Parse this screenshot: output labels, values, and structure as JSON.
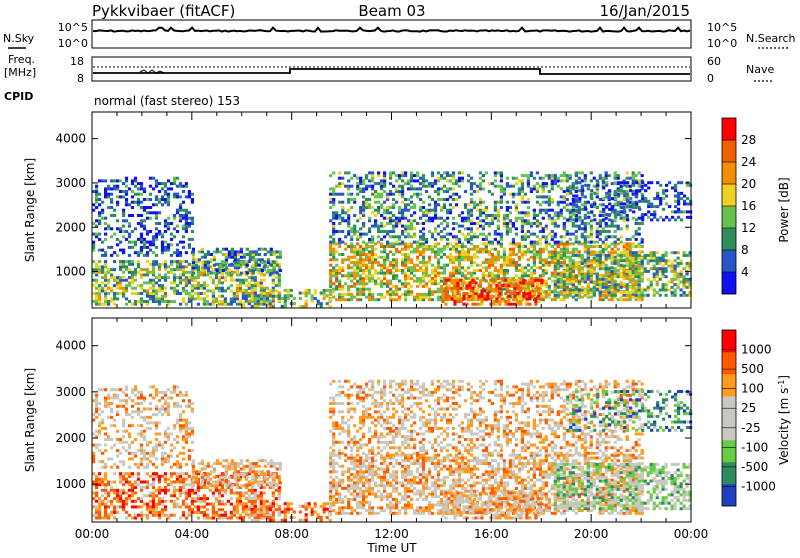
{
  "header": {
    "station": "Pykkvibaer (fitACF)",
    "beam": "Beam 03",
    "date": "16/Jan/2015"
  },
  "top_panels": {
    "nsky_label": "N.Sky",
    "nsky_ticks": [
      "10^5",
      "10^0"
    ],
    "nsearch_label": "N.Search",
    "nsearch_ticks": [
      "10^5",
      "10^0"
    ],
    "freq_label_1": "Freq.",
    "freq_label_2": "[MHz]",
    "freq_ticks": [
      "18",
      "8"
    ],
    "nave_label": "Nave",
    "nave_ticks": [
      "60",
      "0"
    ],
    "cpid_label": "CPID",
    "cpid_text": "normal (fast stereo) 153"
  },
  "colors": {
    "power_scale": [
      "#1010f0",
      "#2a55c8",
      "#2f8f5a",
      "#67c050",
      "#f0d020",
      "#f09000",
      "#f06000",
      "#ff0000"
    ],
    "velocity_scale": [
      "#ff0000",
      "#ff5a00",
      "#ff9a20",
      "#c8c8c0",
      "#c8c8c0",
      "#66cc44",
      "#2e8a60",
      "#2040c0"
    ]
  },
  "chart_data": [
    {
      "type": "heatmap",
      "title": "",
      "xlabel": "Time UT",
      "ylabel": "Slant Range [km]",
      "x_ticks": [
        "00:00",
        "04:00",
        "08:00",
        "12:00",
        "16:00",
        "20:00",
        "00:00"
      ],
      "y_ticks": [
        "1000",
        "2000",
        "3000",
        "4000"
      ],
      "ylim": [
        180,
        4600
      ],
      "colorbar_label": "Power [dB]",
      "colorbar_ticks": [
        "4",
        "8",
        "12",
        "16",
        "20",
        "24",
        "28"
      ],
      "zlim": [
        0,
        32
      ]
    },
    {
      "type": "heatmap",
      "title": "",
      "xlabel": "Time UT",
      "ylabel": "Slant Range [km]",
      "x_ticks": [
        "00:00",
        "04:00",
        "08:00",
        "12:00",
        "16:00",
        "20:00",
        "00:00"
      ],
      "y_ticks": [
        "1000",
        "2000",
        "3000",
        "4000"
      ],
      "ylim": [
        180,
        4600
      ],
      "colorbar_label": "Velocity [m s^-1]",
      "colorbar_ticks": [
        "1000",
        "500",
        "100",
        "25",
        "-25",
        "-100",
        "-500",
        "-1000"
      ]
    }
  ]
}
